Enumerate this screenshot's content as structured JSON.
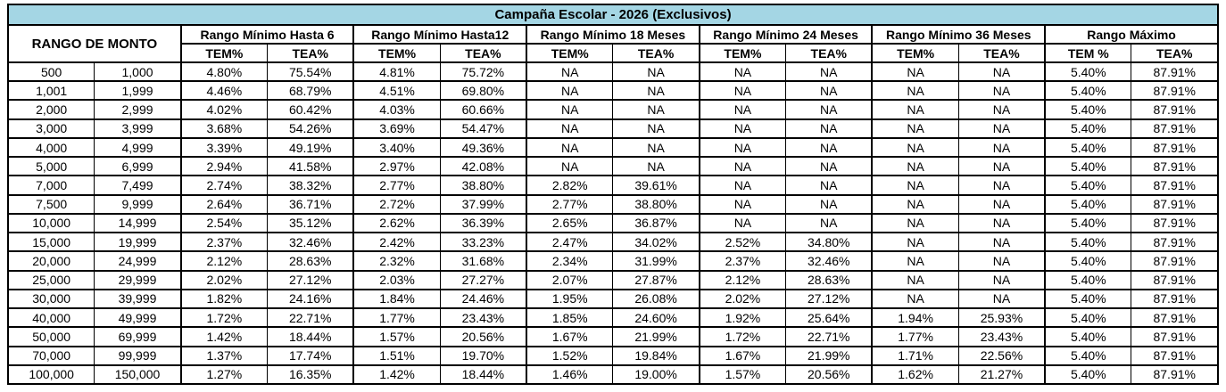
{
  "colors": {
    "header_bg": "#a4d6e4",
    "border": "#000000",
    "text": "#000000",
    "cell_bg": "#ffffff"
  },
  "chart_data": {
    "type": "table",
    "title": "Campaña Escolar - 2026 (Exclusivos)",
    "range_header": "RANGO DE MONTO",
    "groups": [
      {
        "label": "Rango Mínimo Hasta 6",
        "sub": [
          "TEM%",
          "TEA%"
        ]
      },
      {
        "label": "Rango Mínimo Hasta12",
        "sub": [
          "TEM%",
          "TEA%"
        ]
      },
      {
        "label": "Rango Mínimo 18 Meses",
        "sub": [
          "TEM%",
          "TEA%"
        ]
      },
      {
        "label": "Rango Mínimo 24 Meses",
        "sub": [
          "TEM%",
          "TEA%"
        ]
      },
      {
        "label": "Rango Mínimo 36 Meses",
        "sub": [
          "TEM%",
          "TEA%"
        ]
      },
      {
        "label": "Rango Máximo",
        "sub": [
          "TEM %",
          "TEA%"
        ]
      }
    ],
    "rows": [
      [
        "500",
        "1,000",
        "4.80%",
        "75.54%",
        "4.81%",
        "75.72%",
        "NA",
        "NA",
        "NA",
        "NA",
        "NA",
        "NA",
        "5.40%",
        "87.91%"
      ],
      [
        "1,001",
        "1,999",
        "4.46%",
        "68.79%",
        "4.51%",
        "69.80%",
        "NA",
        "NA",
        "NA",
        "NA",
        "NA",
        "NA",
        "5.40%",
        "87.91%"
      ],
      [
        "2,000",
        "2,999",
        "4.02%",
        "60.42%",
        "4.03%",
        "60.66%",
        "NA",
        "NA",
        "NA",
        "NA",
        "NA",
        "NA",
        "5.40%",
        "87.91%"
      ],
      [
        "3,000",
        "3,999",
        "3.68%",
        "54.26%",
        "3.69%",
        "54.47%",
        "NA",
        "NA",
        "NA",
        "NA",
        "NA",
        "NA",
        "5.40%",
        "87.91%"
      ],
      [
        "4,000",
        "4,999",
        "3.39%",
        "49.19%",
        "3.40%",
        "49.36%",
        "NA",
        "NA",
        "NA",
        "NA",
        "NA",
        "NA",
        "5.40%",
        "87.91%"
      ],
      [
        "5,000",
        "6,999",
        "2.94%",
        "41.58%",
        "2.97%",
        "42.08%",
        "NA",
        "NA",
        "NA",
        "NA",
        "NA",
        "NA",
        "5.40%",
        "87.91%"
      ],
      [
        "7,000",
        "7,499",
        "2.74%",
        "38.32%",
        "2.77%",
        "38.80%",
        "2.82%",
        "39.61%",
        "NA",
        "NA",
        "NA",
        "NA",
        "5.40%",
        "87.91%"
      ],
      [
        "7,500",
        "9,999",
        "2.64%",
        "36.71%",
        "2.72%",
        "37.99%",
        "2.77%",
        "38.80%",
        "NA",
        "NA",
        "NA",
        "NA",
        "5.40%",
        "87.91%"
      ],
      [
        "10,000",
        "14,999",
        "2.54%",
        "35.12%",
        "2.62%",
        "36.39%",
        "2.65%",
        "36.87%",
        "NA",
        "NA",
        "NA",
        "NA",
        "5.40%",
        "87.91%"
      ],
      [
        "15,000",
        "19,999",
        "2.37%",
        "32.46%",
        "2.42%",
        "33.23%",
        "2.47%",
        "34.02%",
        "2.52%",
        "34.80%",
        "NA",
        "NA",
        "5.40%",
        "87.91%"
      ],
      [
        "20,000",
        "24,999",
        "2.12%",
        "28.63%",
        "2.32%",
        "31.68%",
        "2.34%",
        "31.99%",
        "2.37%",
        "32.46%",
        "NA",
        "NA",
        "5.40%",
        "87.91%"
      ],
      [
        "25,000",
        "29,999",
        "2.02%",
        "27.12%",
        "2.03%",
        "27.27%",
        "2.07%",
        "27.87%",
        "2.12%",
        "28.63%",
        "NA",
        "NA",
        "5.40%",
        "87.91%"
      ],
      [
        "30,000",
        "39,999",
        "1.82%",
        "24.16%",
        "1.84%",
        "24.46%",
        "1.95%",
        "26.08%",
        "2.02%",
        "27.12%",
        "NA",
        "NA",
        "5.40%",
        "87.91%"
      ],
      [
        "40,000",
        "49,999",
        "1.72%",
        "22.71%",
        "1.77%",
        "23.43%",
        "1.85%",
        "24.60%",
        "1.92%",
        "25.64%",
        "1.94%",
        "25.93%",
        "5.40%",
        "87.91%"
      ],
      [
        "50,000",
        "69,999",
        "1.42%",
        "18.44%",
        "1.57%",
        "20.56%",
        "1.67%",
        "21.99%",
        "1.72%",
        "22.71%",
        "1.77%",
        "23.43%",
        "5.40%",
        "87.91%"
      ],
      [
        "70,000",
        "99,999",
        "1.37%",
        "17.74%",
        "1.51%",
        "19.70%",
        "1.52%",
        "19.84%",
        "1.67%",
        "21.99%",
        "1.71%",
        "22.56%",
        "5.40%",
        "87.91%"
      ],
      [
        "100,000",
        "150,000",
        "1.27%",
        "16.35%",
        "1.42%",
        "18.44%",
        "1.46%",
        "19.00%",
        "1.57%",
        "20.56%",
        "1.62%",
        "21.27%",
        "5.40%",
        "87.91%"
      ]
    ]
  }
}
